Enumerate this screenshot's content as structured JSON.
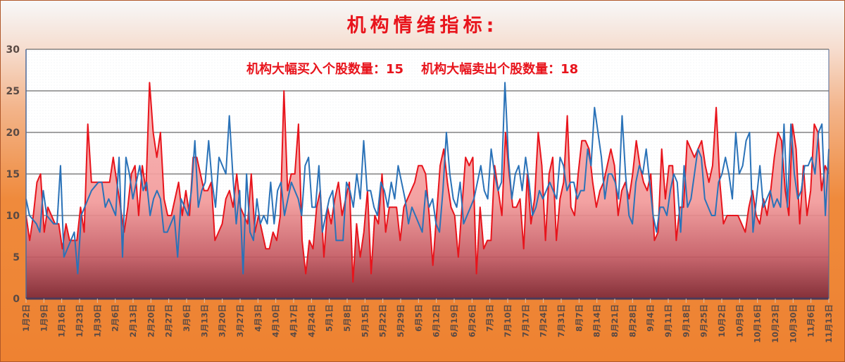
{
  "header": {
    "title": "机构情绪指标:",
    "subtitle": "机构大幅买入个股数量：15    机构大幅卖出个股数量：18"
  },
  "colors": {
    "buy_series": "#e8141c",
    "sell_series": "#2a72b8",
    "area_top": "#f7a6a6",
    "area_bottom": "#7a1f28",
    "background_top": "#f7f8f9",
    "background_bottom": "#ee8231",
    "plot_bg": "#ffffff",
    "grid": "#6b6b6b"
  },
  "chart_data": {
    "type": "line",
    "title": "机构情绪指标:",
    "subtitle": "机构大幅买入个股数量：15    机构大幅卖出个股数量：18",
    "xlabel": "",
    "ylabel": "",
    "ylim": [
      0,
      30
    ],
    "yticks": [
      0,
      5,
      10,
      15,
      20,
      25,
      30
    ],
    "grid": true,
    "legend": "none",
    "x_tick_labels": [
      "1月2日",
      "1月9日",
      "1月16日",
      "1月23日",
      "1月30日",
      "2月6日",
      "2月13日",
      "2月20日",
      "2月27日",
      "3月6日",
      "3月13日",
      "3月20日",
      "3月27日",
      "4月3日",
      "4月10日",
      "4月17日",
      "4月24日",
      "5月1日",
      "5月8日",
      "5月15日",
      "5月22日",
      "5月29日",
      "6月5日",
      "6月12日",
      "6月19日",
      "6月26日",
      "7月3日",
      "7月10日",
      "7月17日",
      "7月24日",
      "7月31日",
      "8月7日",
      "8月14日",
      "8月21日",
      "8月28日",
      "9月4日",
      "9月11日",
      "9月18日",
      "9月25日",
      "10月2日",
      "10月9日",
      "10月16日",
      "10月23日",
      "10月30日",
      "11月6日",
      "11月13日"
    ],
    "series": [
      {
        "name": "机构大幅买入个股数量",
        "style": "red line with red gradient area fill",
        "last_value": 15,
        "values": [
          10,
          7,
          10,
          14,
          15,
          8,
          11,
          10,
          9,
          9,
          6,
          9,
          7,
          7,
          7,
          11,
          8,
          21,
          14,
          14,
          14,
          14,
          14,
          14,
          17,
          14,
          11,
          8,
          11,
          15,
          16,
          10,
          16,
          13,
          26,
          20,
          17,
          20,
          12,
          10,
          10,
          12,
          14,
          10,
          13,
          10,
          17,
          17,
          15,
          13,
          13,
          14,
          7,
          8,
          9,
          12,
          13,
          11,
          15,
          11,
          10,
          9,
          15,
          8,
          10,
          8,
          6,
          6,
          8,
          7,
          10,
          25,
          13,
          15,
          15,
          21,
          7,
          3,
          7,
          6,
          11,
          13,
          5,
          11,
          9,
          12,
          14,
          10,
          12,
          14,
          2,
          9,
          5,
          8,
          13,
          3,
          10,
          9,
          15,
          8,
          11,
          11,
          11,
          7,
          11,
          12,
          13,
          14,
          16,
          16,
          15,
          10,
          4,
          10,
          16,
          18,
          14,
          11,
          10,
          5,
          11,
          17,
          16,
          17,
          3,
          11,
          6,
          7,
          7,
          16,
          13,
          10,
          20,
          15,
          11,
          11,
          12,
          6,
          15,
          9,
          12,
          20,
          16,
          7,
          15,
          17,
          7,
          12,
          14,
          22,
          11,
          10,
          15,
          19,
          19,
          18,
          14,
          11,
          13,
          14,
          16,
          18,
          16,
          10,
          13,
          14,
          12,
          15,
          19,
          16,
          14,
          13,
          15,
          7,
          8,
          18,
          12,
          16,
          16,
          7,
          11,
          11,
          19,
          18,
          17,
          18,
          19,
          16,
          14,
          16,
          23,
          14,
          9,
          10,
          10,
          10,
          10,
          9,
          8,
          11,
          13,
          10,
          9,
          12,
          10,
          13,
          17,
          20,
          19,
          13,
          10,
          21,
          18,
          9,
          16,
          10,
          13,
          21,
          20,
          13,
          16,
          15
        ],
        "color": "#e8141c"
      },
      {
        "name": "机构大幅卖出个股数量",
        "style": "blue line",
        "last_value": 18,
        "values": [
          12,
          10,
          9.5,
          9,
          8,
          13,
          10,
          9.5,
          9,
          9,
          16,
          5,
          6,
          7,
          8,
          3,
          10,
          11,
          12,
          13,
          13.5,
          14,
          14,
          11,
          12,
          11,
          10,
          17,
          5,
          17,
          15,
          12,
          14,
          16,
          13,
          14,
          10,
          12,
          13,
          12,
          8,
          8,
          9,
          10,
          5,
          12,
          11,
          10,
          13,
          19,
          11,
          13,
          14,
          19,
          14,
          11,
          17,
          16,
          15,
          22,
          15,
          9,
          13,
          3,
          15,
          8,
          7,
          12,
          9,
          10,
          9,
          14,
          9,
          13,
          14,
          10,
          12,
          14,
          13,
          12,
          10,
          16,
          17,
          11,
          11,
          16,
          8,
          10,
          12,
          13,
          7,
          7,
          7,
          14,
          13,
          11,
          15,
          12,
          19,
          13,
          13,
          11,
          10,
          14,
          13,
          11,
          14,
          12,
          16,
          14,
          12,
          9,
          11,
          10,
          9,
          8,
          13,
          11,
          12,
          9,
          8,
          13,
          20,
          15,
          12,
          11,
          14,
          9,
          10,
          11,
          12,
          14,
          16,
          13,
          12,
          18,
          15,
          13,
          14,
          26,
          17,
          12,
          15,
          16,
          13,
          17,
          14,
          10,
          11,
          13,
          12,
          13,
          14,
          13,
          12,
          17,
          16,
          13,
          14,
          14,
          12,
          13,
          13,
          18,
          16,
          23,
          20,
          17,
          12,
          15,
          15,
          14,
          12,
          22,
          15,
          10,
          9,
          14,
          16,
          15,
          18,
          14,
          10,
          8,
          11,
          11,
          10,
          13,
          15,
          14,
          8,
          16,
          11,
          12,
          15,
          18,
          17,
          12,
          11,
          10,
          10,
          14,
          15,
          17,
          15,
          12,
          20,
          15,
          16,
          19,
          20,
          8,
          12,
          16,
          11,
          12,
          13,
          11,
          12,
          11,
          21,
          11,
          21,
          15,
          12,
          13,
          16,
          16,
          17,
          15,
          20,
          21,
          10,
          18
        ],
        "color": "#2a72b8"
      }
    ]
  }
}
